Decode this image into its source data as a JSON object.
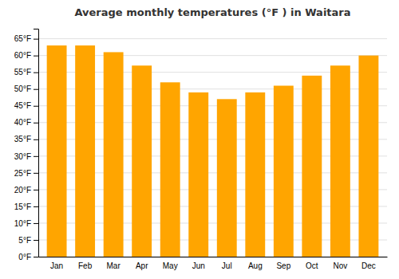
{
  "chart_data": {
    "type": "bar",
    "title": "Average monthly temperatures (°F ) in Waitara",
    "categories": [
      "Jan",
      "Feb",
      "Mar",
      "Apr",
      "May",
      "Jun",
      "Jul",
      "Aug",
      "Sep",
      "Oct",
      "Nov",
      "Dec"
    ],
    "values": [
      63,
      63,
      61,
      57,
      52,
      49,
      47,
      49,
      51,
      54,
      57,
      60
    ],
    "color": "#FFA500",
    "ylim": [
      0,
      68
    ],
    "yticks": [
      {
        "value": 0,
        "label": "0°F"
      },
      {
        "value": 5,
        "label": "5°F"
      },
      {
        "value": 10,
        "label": "10°F"
      },
      {
        "value": 15,
        "label": "15°F"
      },
      {
        "value": 20,
        "label": "20°F"
      },
      {
        "value": 25,
        "label": "25°F"
      },
      {
        "value": 30,
        "label": "30°F"
      },
      {
        "value": 35,
        "label": "35°F"
      },
      {
        "value": 40,
        "label": "40°F"
      },
      {
        "value": 45,
        "label": "45°F"
      },
      {
        "value": 50,
        "label": "50°F"
      },
      {
        "value": 55,
        "label": "55°F"
      },
      {
        "value": 60,
        "label": "60°F"
      },
      {
        "value": 65,
        "label": "65°F"
      }
    ],
    "grid": true
  }
}
